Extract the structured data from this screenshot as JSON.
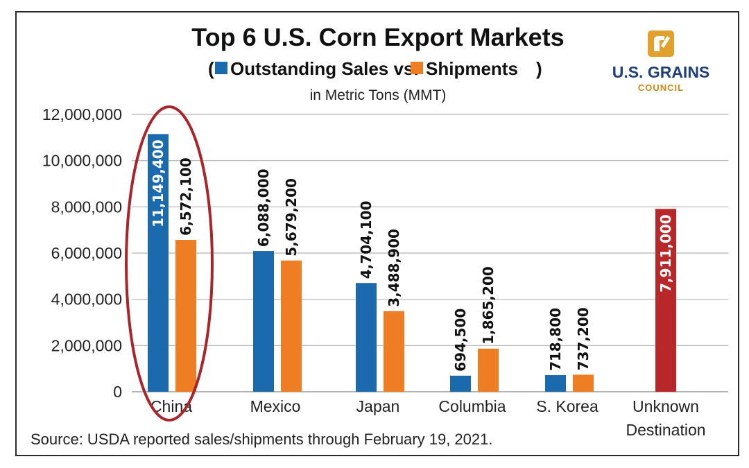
{
  "chart_data": {
    "type": "bar",
    "title": "Top 6 U.S. Corn Export Markets",
    "subtitle_open": "(",
    "subtitle_close": ")",
    "units": "in Metric Tons (MMT)",
    "categories": [
      "China",
      "Mexico",
      "Japan",
      "Columbia",
      "S. Korea",
      "Unknown Destination"
    ],
    "series": [
      {
        "name": "Outstanding Sales vs.",
        "color": "#1a6aad",
        "values": [
          11149400,
          6088000,
          4704100,
          694500,
          718800,
          null
        ],
        "labels": [
          "11,149,400",
          "6,088,000",
          "4,704,100",
          "694,500",
          "718,800",
          ""
        ]
      },
      {
        "name": "Shipments",
        "color": "#ee7d23",
        "values": [
          6572100,
          5679200,
          3488900,
          1865200,
          737200,
          null
        ],
        "labels": [
          "6,572,100",
          "5,679,200",
          "3,488,900",
          "1,865,200",
          "737,200",
          ""
        ]
      },
      {
        "name": "",
        "color": "#b8282b",
        "values": [
          null,
          null,
          null,
          null,
          null,
          7911000
        ],
        "labels": [
          "",
          "",
          "",
          "",
          "",
          "7,911,000"
        ]
      }
    ],
    "ylim": [
      0,
      12000000
    ],
    "yticks": [
      0,
      2000000,
      4000000,
      6000000,
      8000000,
      10000000,
      12000000
    ],
    "ytick_labels": [
      "0",
      "2,000,000",
      "4,000,000",
      "6,000,000",
      "8,000,000",
      "10,000,000",
      "12,000,000"
    ],
    "grid": true,
    "highlight_category": "China",
    "source": "Source: USDA reported sales/shipments through February 19, 2021."
  },
  "logo": {
    "main": "U.S. GRAINS",
    "sub": "COUNCIL",
    "icon": "grains-council-logo-icon",
    "color_main": "#1f3f7a",
    "color_accent": "#e0a12e"
  }
}
